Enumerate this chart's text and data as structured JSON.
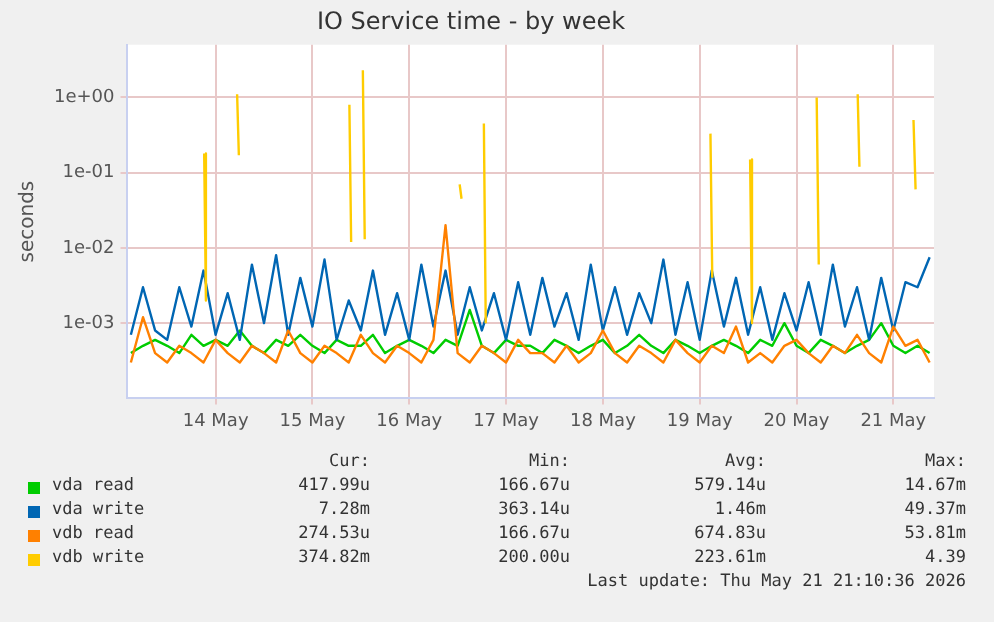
{
  "chart_data": {
    "type": "line",
    "title": "IO Service time - by week",
    "ylabel": "seconds",
    "log": "y",
    "grid": true,
    "legend": "bottom",
    "marker": "none",
    "line_style": "solid",
    "xlim": [
      "2026-05-13T13:55",
      "2026-05-21T22:05"
    ],
    "xticks": [
      {
        "value": "2026-05-14T12:00",
        "label": "14 May"
      },
      {
        "value": "2026-05-15T12:00",
        "label": "15 May"
      },
      {
        "value": "2026-05-16T12:00",
        "label": "16 May"
      },
      {
        "value": "2026-05-17T12:00",
        "label": "17 May"
      },
      {
        "value": "2026-05-18T12:00",
        "label": "18 May"
      },
      {
        "value": "2026-05-19T12:00",
        "label": "19 May"
      },
      {
        "value": "2026-05-20T12:00",
        "label": "20 May"
      },
      {
        "value": "2026-05-21T12:00",
        "label": "21 May"
      }
    ],
    "ylim": [
      0.0001,
      5
    ],
    "yticks": [
      {
        "value": 0.001,
        "label": "1e-03"
      },
      {
        "value": 0.01,
        "label": "1e-02"
      },
      {
        "value": 0.1,
        "label": "1e-01"
      },
      {
        "value": 1,
        "label": "1e+00"
      }
    ],
    "x": [
      "2026-05-13T15:00",
      "2026-05-13T18:00",
      "2026-05-13T21:00",
      "2026-05-14T00:00",
      "2026-05-14T03:00",
      "2026-05-14T06:00",
      "2026-05-14T09:00",
      "2026-05-14T12:00",
      "2026-05-14T15:00",
      "2026-05-14T18:00",
      "2026-05-14T21:00",
      "2026-05-15T00:00",
      "2026-05-15T03:00",
      "2026-05-15T06:00",
      "2026-05-15T09:00",
      "2026-05-15T12:00",
      "2026-05-15T15:00",
      "2026-05-15T18:00",
      "2026-05-15T21:00",
      "2026-05-16T00:00",
      "2026-05-16T03:00",
      "2026-05-16T06:00",
      "2026-05-16T09:00",
      "2026-05-16T12:00",
      "2026-05-16T15:00",
      "2026-05-16T18:00",
      "2026-05-16T21:00",
      "2026-05-17T00:00",
      "2026-05-17T03:00",
      "2026-05-17T06:00",
      "2026-05-17T09:00",
      "2026-05-17T12:00",
      "2026-05-17T15:00",
      "2026-05-17T18:00",
      "2026-05-17T21:00",
      "2026-05-18T00:00",
      "2026-05-18T03:00",
      "2026-05-18T06:00",
      "2026-05-18T09:00",
      "2026-05-18T12:00",
      "2026-05-18T15:00",
      "2026-05-18T18:00",
      "2026-05-18T21:00",
      "2026-05-19T00:00",
      "2026-05-19T03:00",
      "2026-05-19T06:00",
      "2026-05-19T09:00",
      "2026-05-19T12:00",
      "2026-05-19T15:00",
      "2026-05-19T18:00",
      "2026-05-19T21:00",
      "2026-05-20T00:00",
      "2026-05-20T03:00",
      "2026-05-20T06:00",
      "2026-05-20T09:00",
      "2026-05-20T12:00",
      "2026-05-20T15:00",
      "2026-05-20T18:00",
      "2026-05-20T21:00",
      "2026-05-21T00:00",
      "2026-05-21T03:00",
      "2026-05-21T06:00",
      "2026-05-21T09:00",
      "2026-05-21T12:00",
      "2026-05-21T15:00",
      "2026-05-21T18:00",
      "2026-05-21T21:00"
    ],
    "series": [
      {
        "name": "vda read",
        "color": "#00cc00",
        "values": [
          0.0004,
          0.0005,
          0.0006,
          0.0005,
          0.0004,
          0.0007,
          0.0005,
          0.0006,
          0.0005,
          0.0008,
          0.0005,
          0.0004,
          0.0006,
          0.0005,
          0.0007,
          0.0005,
          0.0004,
          0.0006,
          0.0005,
          0.0005,
          0.0007,
          0.0004,
          0.0005,
          0.0006,
          0.0005,
          0.0004,
          0.0006,
          0.0005,
          0.0015,
          0.0005,
          0.0004,
          0.0006,
          0.0005,
          0.0005,
          0.0004,
          0.0006,
          0.0005,
          0.0004,
          0.0005,
          0.0006,
          0.0004,
          0.0005,
          0.0007,
          0.0005,
          0.0004,
          0.0006,
          0.0005,
          0.0004,
          0.0005,
          0.0006,
          0.0005,
          0.0004,
          0.0006,
          0.0005,
          0.001,
          0.0005,
          0.0004,
          0.0006,
          0.0005,
          0.0004,
          0.0005,
          0.0006,
          0.001,
          0.0005,
          0.0004,
          0.0005,
          0.0004
        ]
      },
      {
        "name": "vda write",
        "color": "#0066b3",
        "values": [
          0.0007,
          0.003,
          0.0008,
          0.0006,
          0.003,
          0.0009,
          0.005,
          0.0007,
          0.0025,
          0.0006,
          0.006,
          0.001,
          0.008,
          0.0007,
          0.004,
          0.0009,
          0.007,
          0.0006,
          0.002,
          0.0008,
          0.005,
          0.0007,
          0.0025,
          0.0006,
          0.006,
          0.0009,
          0.005,
          0.0007,
          0.003,
          0.0008,
          0.0025,
          0.0006,
          0.0035,
          0.0007,
          0.004,
          0.0009,
          0.0025,
          0.0006,
          0.006,
          0.0008,
          0.003,
          0.0007,
          0.0025,
          0.001,
          0.007,
          0.0007,
          0.0035,
          0.0006,
          0.005,
          0.0009,
          0.004,
          0.0007,
          0.003,
          0.0006,
          0.0025,
          0.0008,
          0.0035,
          0.0007,
          0.006,
          0.0009,
          0.003,
          0.0006,
          0.004,
          0.0008,
          0.0035,
          0.003,
          0.0075
        ]
      },
      {
        "name": "vdb read",
        "color": "#ff8000",
        "values": [
          0.0003,
          0.0012,
          0.0004,
          0.0003,
          0.0005,
          0.0004,
          0.0003,
          0.0006,
          0.0004,
          0.0003,
          0.0005,
          0.0004,
          0.0003,
          0.0008,
          0.0004,
          0.0003,
          0.0005,
          0.0004,
          0.0003,
          0.0007,
          0.0004,
          0.0003,
          0.0005,
          0.0004,
          0.0003,
          0.0006,
          0.02,
          0.0004,
          0.0003,
          0.0005,
          0.0004,
          0.0003,
          0.0006,
          0.0004,
          0.0004,
          0.0003,
          0.0005,
          0.0003,
          0.0004,
          0.0008,
          0.0004,
          0.0003,
          0.0005,
          0.0004,
          0.0003,
          0.0006,
          0.0004,
          0.0003,
          0.0005,
          0.0004,
          0.0009,
          0.0003,
          0.0004,
          0.0003,
          0.0005,
          0.0006,
          0.0004,
          0.0003,
          0.0005,
          0.0004,
          0.0007,
          0.0004,
          0.0003,
          0.0009,
          0.0005,
          0.0006,
          0.0003
        ]
      },
      {
        "name": "vdb write",
        "color": "#ffcc00",
        "x": [
          "2026-05-14T09:10",
          "2026-05-14T09:36",
          "2026-05-14T10:00",
          "2026-05-14T17:20",
          "2026-05-14T17:46",
          "2026-05-14T18:10",
          "2026-05-15T21:10",
          "2026-05-15T21:36",
          "2026-05-15T22:00",
          "2026-05-16T00:30",
          "2026-05-16T00:58",
          "2026-05-16T01:30",
          "2026-05-17T00:30",
          "2026-05-17T00:58",
          "2026-05-17T01:30",
          "2026-05-17T06:30",
          "2026-05-17T06:58",
          "2026-05-17T07:30",
          "2026-05-19T14:40",
          "2026-05-19T15:07",
          "2026-05-19T15:40",
          "2026-05-20T00:30",
          "2026-05-20T00:58",
          "2026-05-20T01:30",
          "2026-05-20T17:00",
          "2026-05-20T17:31",
          "2026-05-20T18:00",
          "2026-05-21T03:10",
          "2026-05-21T03:36",
          "2026-05-21T04:00",
          "2026-05-21T17:00",
          "2026-05-21T17:31"
        ],
        "values": [
          0.18,
          0.002,
          null,
          1.1,
          0.17,
          null,
          0.8,
          0.012,
          null,
          2.3,
          0.013,
          null,
          0.07,
          0.045,
          null,
          0.45,
          0.001,
          null,
          0.33,
          0.004,
          null,
          0.15,
          0.001,
          null,
          1.0,
          0.006,
          null,
          1.1,
          0.12,
          null,
          0.5,
          0.06
        ]
      }
    ],
    "annotations": [
      "Cur:",
      "Min:",
      "Avg:",
      "Max:",
      "417.99u",
      "166.67u",
      "579.14u",
      "14.67m",
      "7.28m",
      "363.14u",
      "1.46m",
      "49.37m",
      "274.53u",
      "166.67u",
      "674.83u",
      "53.81m",
      "374.82m",
      "200.00u",
      "223.61m",
      "4.39",
      "Last update: Thu May 21 21:10:36 2026"
    ]
  }
}
